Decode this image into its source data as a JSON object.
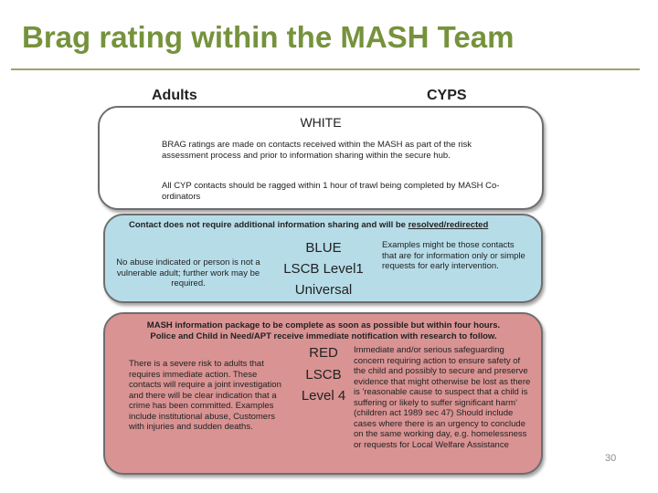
{
  "slide": {
    "title": "Brag rating within the MASH Team",
    "page_number": "30"
  },
  "diagram": {
    "left_header": "Adults",
    "right_header": "CYPS",
    "white": {
      "heading": "WHITE",
      "paragraph1": "BRAG ratings are made on contacts received within the MASH as part of the risk assessment process and prior to information sharing within the secure hub.",
      "paragraph2": "All CYP contacts should be ragged within 1 hour of trawl being completed by MASH Co-ordinators"
    },
    "blue": {
      "banner_prefix": "Contact does not require additional information sharing and will be ",
      "banner_underlined": "resolved/redirected",
      "level_line1": "BLUE",
      "level_line2": "LSCB Level1",
      "level_line3": "Universal",
      "adults_text": "No abuse indicated or person is not a vulnerable adult; further work may be required.",
      "cyps_text": "Examples might be those contacts that are for information only or simple requests for early intervention."
    },
    "red": {
      "banner_line1": "MASH information package to be complete as soon as possible but within four hours.",
      "banner_line2": "Police and Child in Need/APT receive immediate notification with research to follow.",
      "level_line1": "RED",
      "level_line2": "LSCB",
      "level_line3": "Level 4",
      "adults_text": "There is a severe risk to adults that requires immediate action. These contacts will require a joint investigation and there will be clear indication that a crime has been committed. Examples include institutional abuse, Customers with injuries and sudden deaths.",
      "cyps_text": "Immediate and/or serious safeguarding concern requiring action to ensure safety of the child and possibly to secure and preserve evidence that might otherwise be lost as there is 'reasonable cause to suspect that a child is suffering or likely to suffer significant harm' (children act 1989 sec 47) Should include cases where there is an urgency to conclude on the same working day, e.g. homelessness or requests for Local Welfare Assistance"
    }
  }
}
